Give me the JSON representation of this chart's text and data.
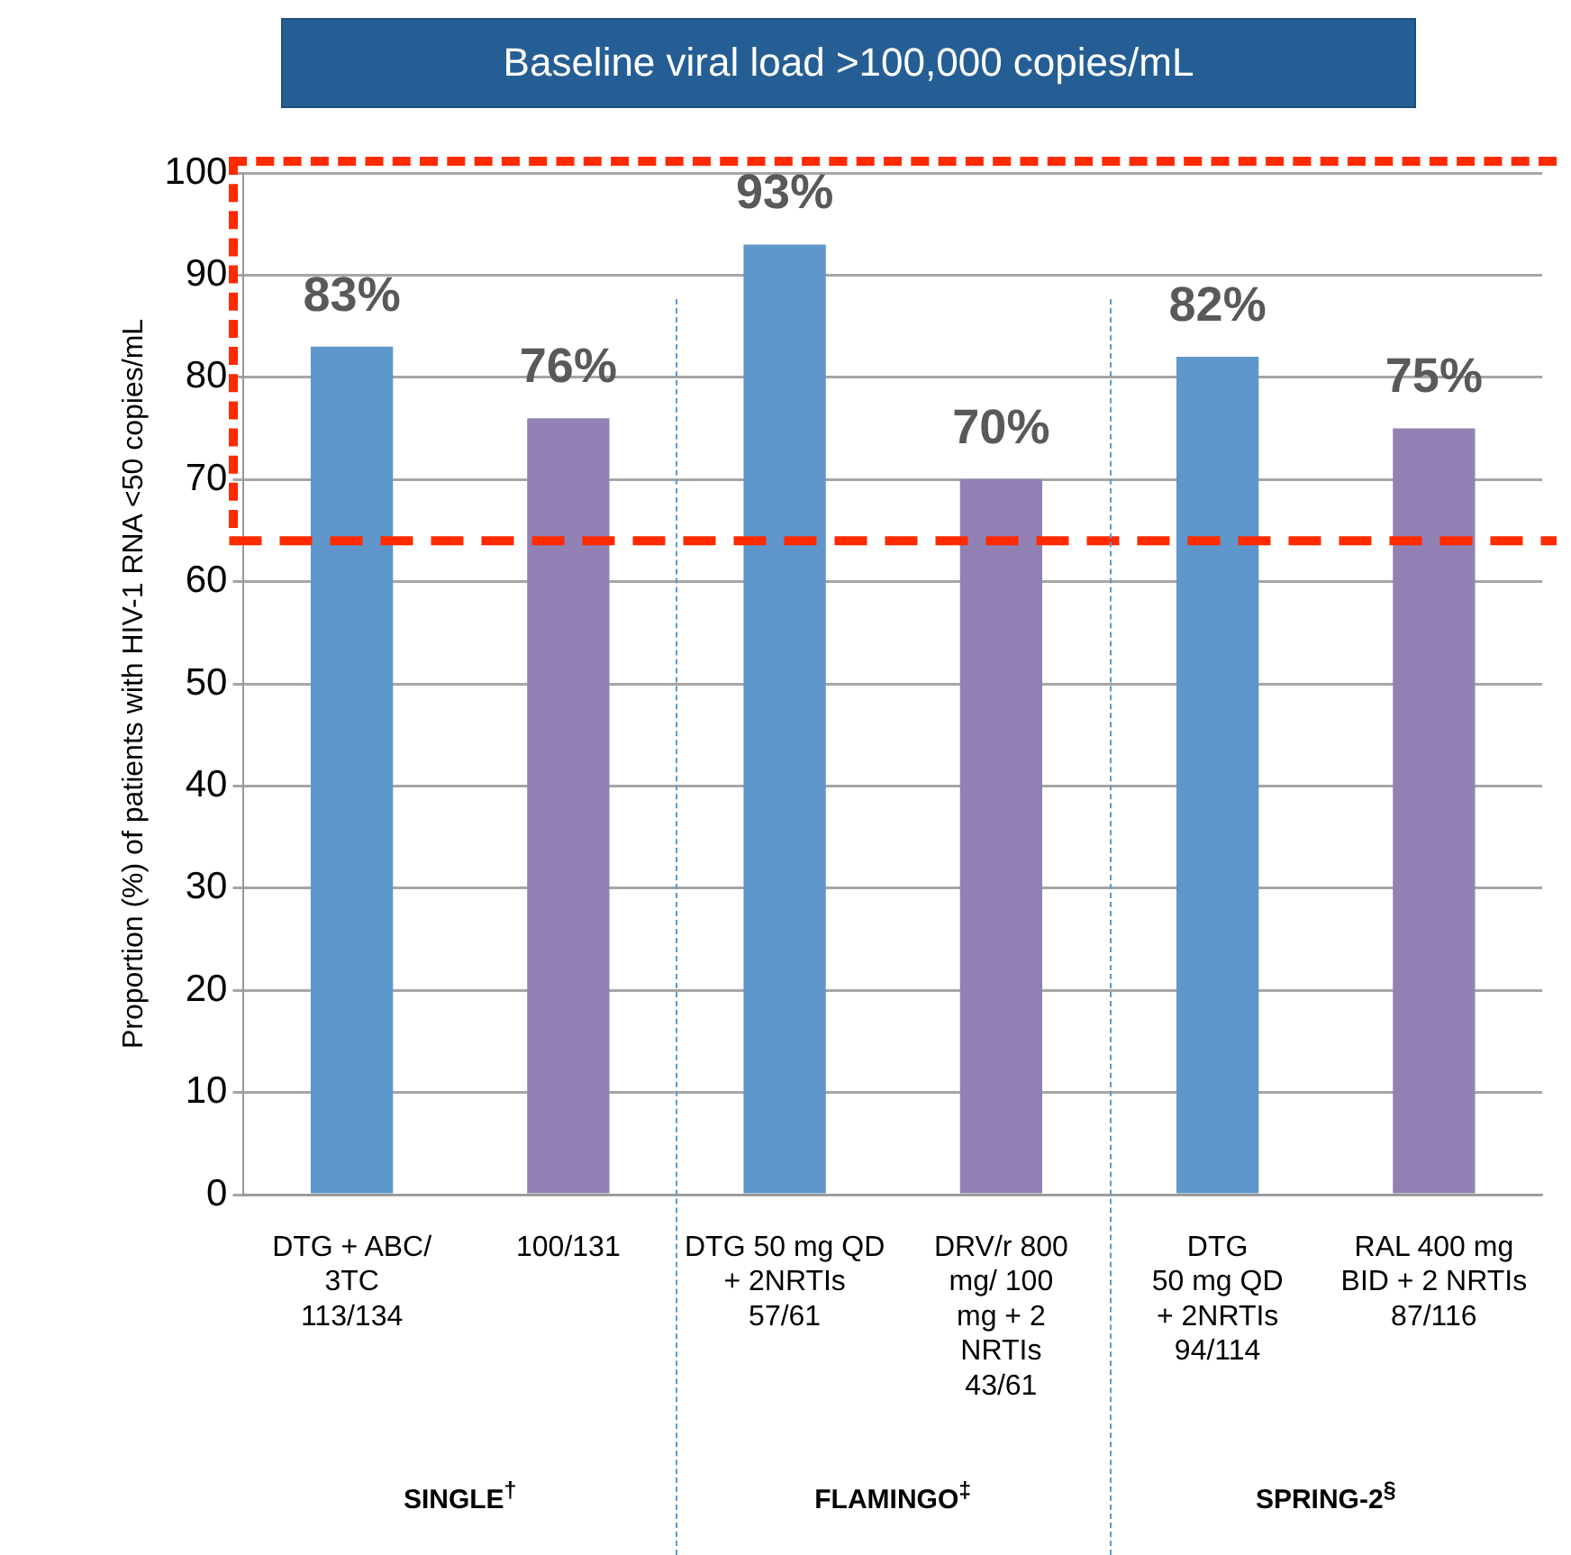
{
  "chart_data": {
    "type": "bar",
    "title": "Baseline viral load >100,000 copies/mL",
    "ylabel": "Proportion (%) of patients with HIV-1 RNA <50 copies/mL",
    "categories": [
      "DTG + ABC/\n3TC\n113/134",
      "100/131",
      "DTG 50 mg QD\n+ 2NRTIs\n57/61",
      "DRV/r 800\nmg/ 100\nmg + 2\nNRTIs\n43/61",
      "DTG\n50 mg QD\n+ 2NRTIs\n94/114",
      "RAL 400 mg\nBID + 2 NRTIs\n87/116"
    ],
    "values": [
      83,
      76,
      93,
      70,
      82,
      75
    ],
    "value_labels": [
      "83%",
      "76%",
      "93%",
      "70%",
      "82%",
      "75%"
    ],
    "colors": [
      "#5f96cb",
      "#9181b4",
      "#5f96cb",
      "#9181b4",
      "#5f96cb",
      "#9181b4"
    ],
    "ylim": [
      0,
      100
    ],
    "yticks": [
      0,
      10,
      20,
      30,
      40,
      50,
      60,
      70,
      80,
      90,
      100
    ],
    "grid": "y",
    "legend": false,
    "ref_lines": [
      {
        "axis": "y",
        "value": 64,
        "color": "#ff2a00",
        "line_style": "dashed"
      }
    ],
    "annotations": [
      "SINGLE$^{†}$",
      "FLAMINGO$^{‡}$",
      "SPRING-2$^{§}$"
    ]
  }
}
